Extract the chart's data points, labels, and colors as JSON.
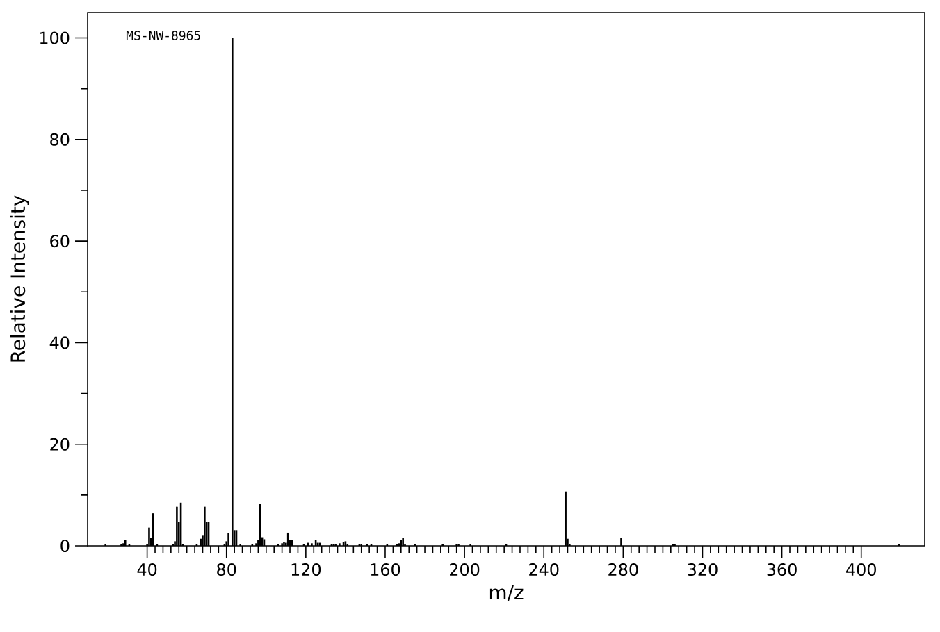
{
  "chart_data": {
    "type": "bar",
    "xlabel": "m/z",
    "ylabel": "Relative Intensity",
    "annotations": [
      "MS-NW-8965"
    ],
    "x": [
      19,
      27,
      28,
      29,
      31,
      40,
      41,
      42,
      43,
      45,
      53,
      54,
      55,
      56,
      57,
      58,
      65,
      67,
      68,
      69,
      70,
      71,
      79,
      80,
      81,
      83,
      84,
      85,
      87,
      93,
      95,
      96,
      97,
      98,
      99,
      106,
      108,
      109,
      110,
      111,
      112,
      113,
      119,
      121,
      123,
      125,
      126,
      127,
      133,
      134,
      135,
      137,
      139,
      140,
      141,
      147,
      148,
      151,
      153,
      161,
      166,
      167,
      168,
      169,
      170,
      175,
      189,
      196,
      197,
      203,
      221,
      251,
      252,
      253,
      279,
      305,
      306,
      419
    ],
    "values": [
      0.3,
      0.3,
      0.5,
      1.1,
      0.3,
      0.3,
      3.6,
      1.5,
      6.4,
      0.3,
      0.4,
      0.9,
      7.7,
      4.7,
      8.5,
      0.3,
      0.3,
      1.4,
      2.0,
      7.7,
      4.7,
      4.7,
      0.3,
      0.9,
      2.5,
      100,
      3.1,
      3.1,
      0.3,
      0.3,
      0.5,
      1.1,
      8.3,
      1.7,
      1.3,
      0.3,
      0.5,
      0.7,
      0.6,
      2.6,
      1.2,
      1.1,
      0.3,
      0.6,
      0.5,
      1.2,
      0.6,
      0.6,
      0.3,
      0.3,
      0.3,
      0.5,
      0.8,
      0.9,
      0.3,
      0.3,
      0.3,
      0.3,
      0.3,
      0.3,
      0.4,
      0.5,
      1.2,
      1.5,
      0.3,
      0.3,
      0.3,
      0.3,
      0.3,
      0.3,
      0.3,
      10.7,
      1.4,
      0.3,
      1.6,
      0.3,
      0.3,
      0.3
    ],
    "color": "#000000",
    "xlim": [
      10,
      432
    ],
    "ylim": [
      0,
      105
    ],
    "xticks": [
      40,
      80,
      120,
      160,
      200,
      240,
      280,
      320,
      360,
      400
    ],
    "yticks": [
      0,
      20,
      40,
      60,
      80,
      100
    ]
  }
}
